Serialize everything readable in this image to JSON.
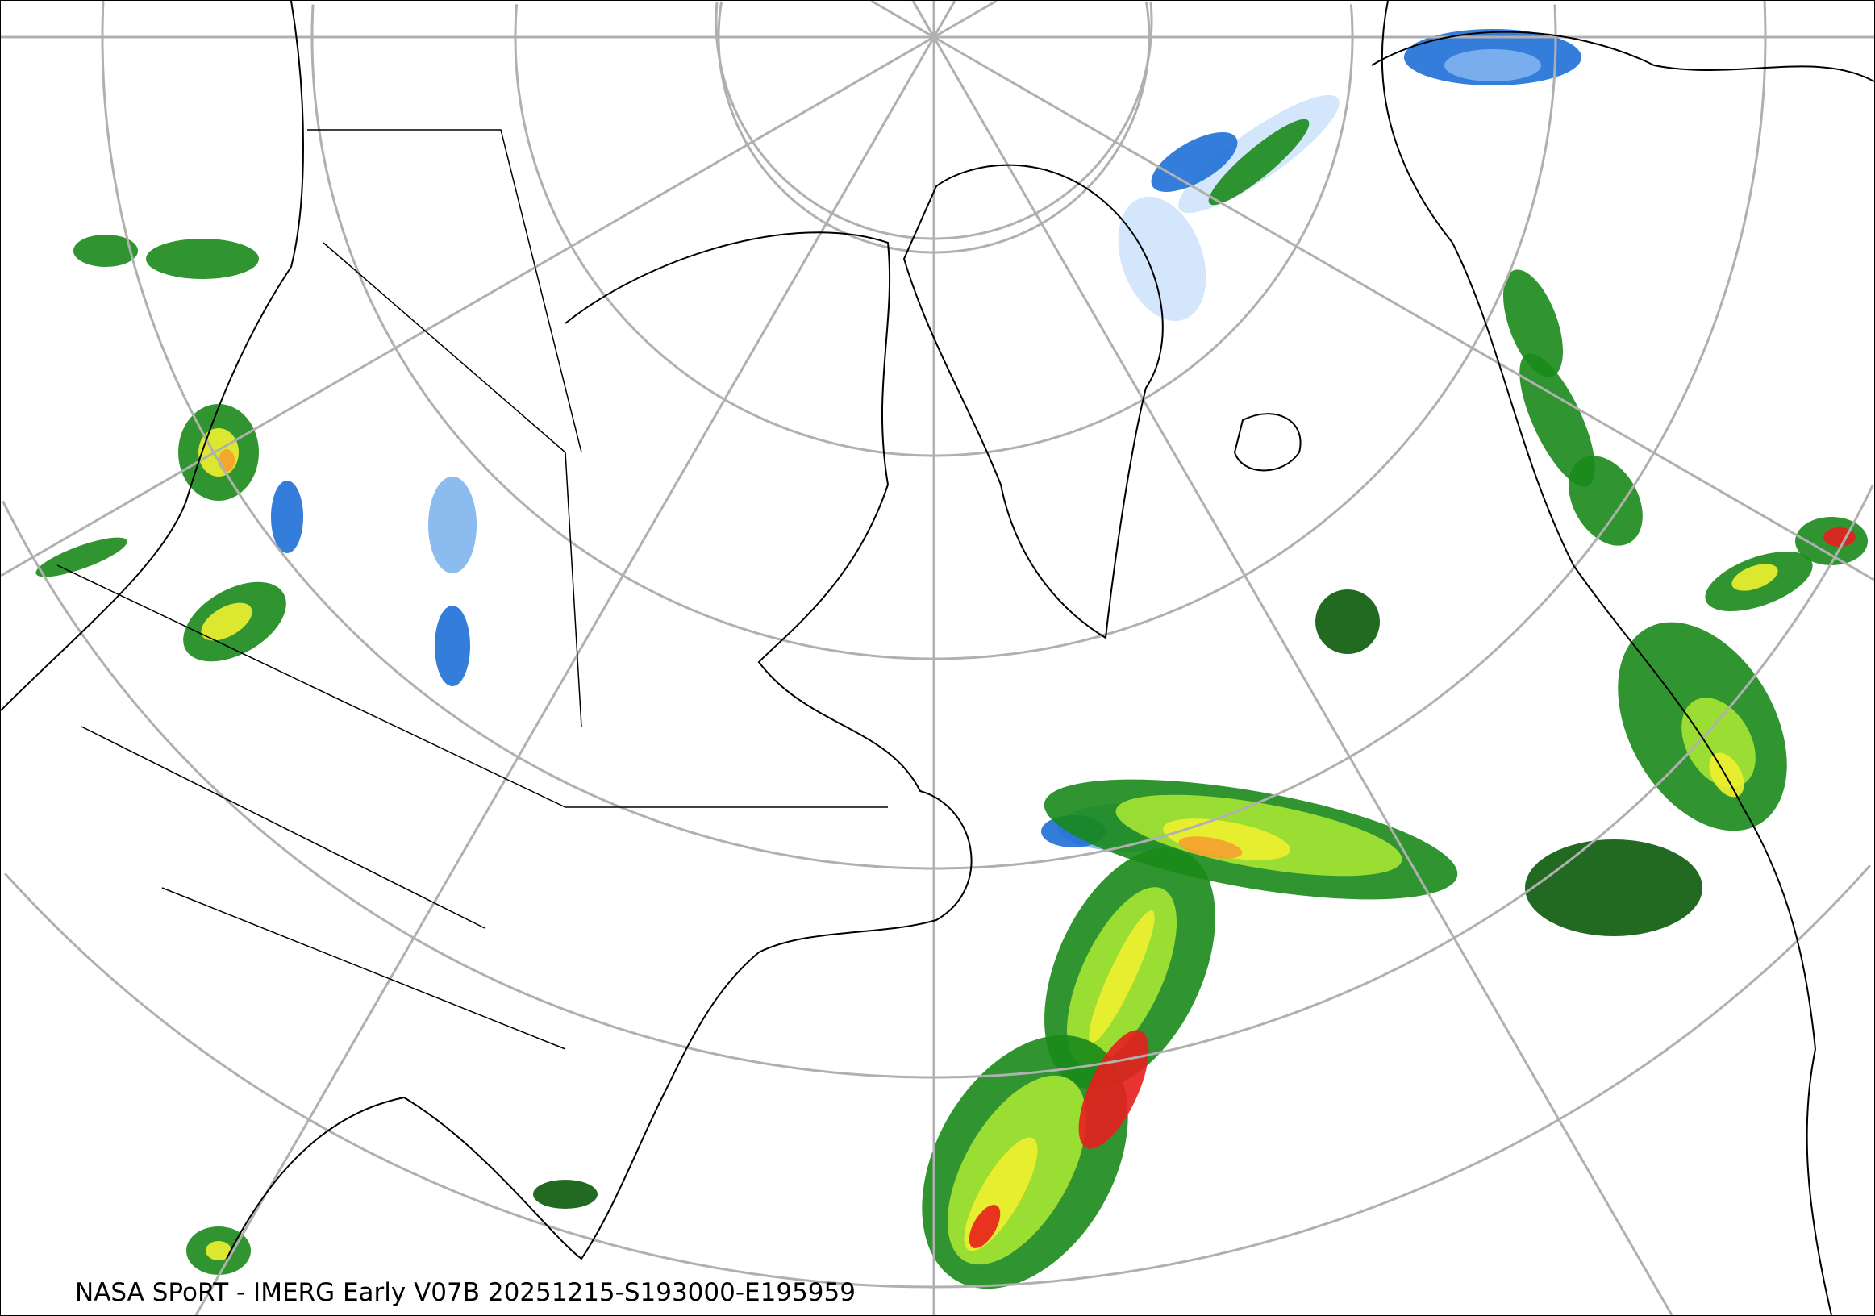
{
  "map": {
    "caption": "NASA SPoRT - IMERG Early V07B 20251215-S193000-E195959",
    "projection": "north-polar-stereographic",
    "product": "IMERG Early precipitation",
    "colors": {
      "graticule": "#b0b0b0",
      "coastline": "#000000",
      "snow_light": "#cfe3fb",
      "snow_medium": "#7fb4ee",
      "snow_heavy": "#1f6fd6",
      "snow_extreme": "#e040e0",
      "rain_light": "#1a8a1a",
      "rain_dark": "#0a5a0a",
      "rain_moderate": "#a6e635",
      "rain_heavy": "#f0f030",
      "rain_veryheavy": "#f5a030",
      "rain_extreme": "#e81e1e"
    }
  }
}
